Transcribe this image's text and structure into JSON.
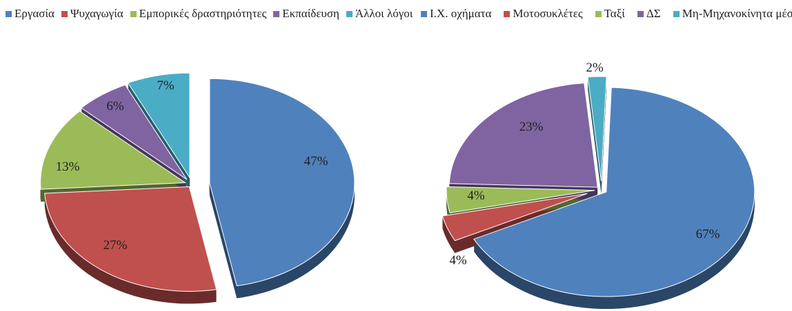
{
  "chart_data": [
    {
      "type": "pie",
      "title": "",
      "categories": [
        "Εργασία",
        "Ψυχαγωγία",
        "Εμπορικές δραστηριότητες",
        "Εκπαίδευση",
        "Άλλοι λόγοι"
      ],
      "values": [
        47,
        27,
        13,
        6,
        7
      ],
      "labels": [
        "47%",
        "27%",
        "13%",
        "6%",
        "7%"
      ],
      "colors": [
        "#4f81bd",
        "#c0504d",
        "#9bbb59",
        "#8064a2",
        "#4bacc6"
      ],
      "legend": "top"
    },
    {
      "type": "pie",
      "title": "",
      "categories": [
        "Ι.Χ. οχήματα",
        "Μοτοσυκλέτες",
        "Ταξί",
        "ΔΣ",
        "Μη-Μηχανοκίνητα μέσα"
      ],
      "values": [
        67,
        4,
        4,
        23,
        2
      ],
      "labels": [
        "67%",
        "4%",
        "4%",
        "23%",
        "2%"
      ],
      "colors": [
        "#4f81bd",
        "#c0504d",
        "#9bbb59",
        "#8064a2",
        "#4bacc6"
      ],
      "legend": "top"
    }
  ]
}
